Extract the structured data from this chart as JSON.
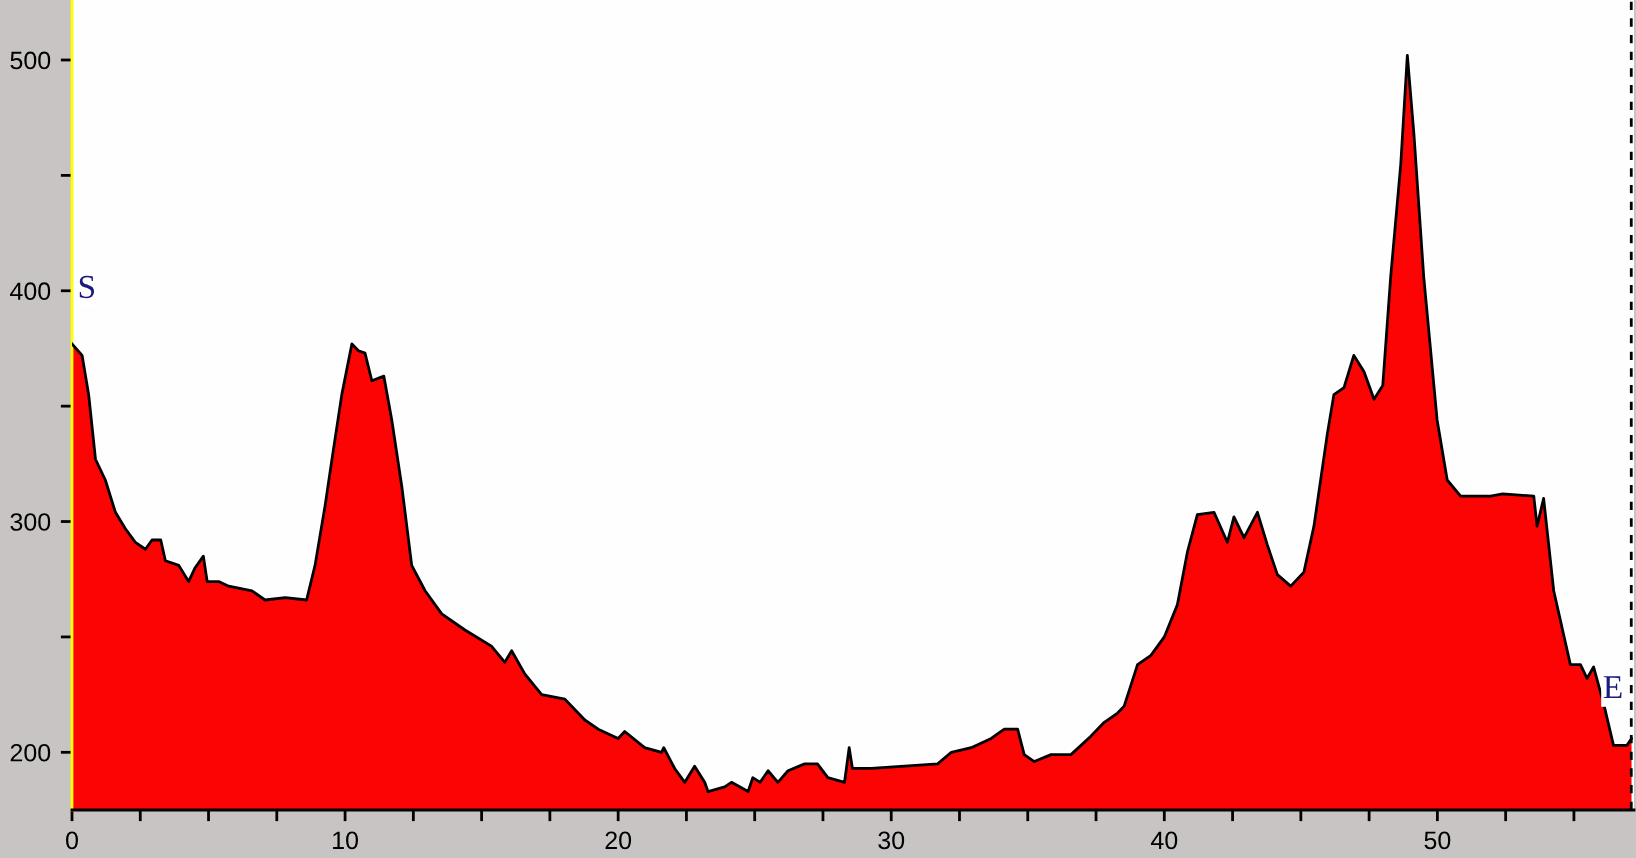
{
  "chart_data": {
    "type": "area",
    "x": [
      0,
      0.37,
      0.61,
      0.86,
      1.22,
      1.59,
      1.95,
      2.32,
      2.69,
      2.93,
      3.25,
      3.42,
      3.91,
      4.27,
      4.51,
      4.81,
      4.95,
      5.37,
      5.74,
      6.59,
      7.07,
      7.81,
      8.59,
      8.9,
      9.27,
      9.52,
      9.88,
      10.25,
      10.49,
      10.73,
      10.98,
      11.42,
      11.71,
      12.08,
      12.44,
      12.93,
      13.54,
      14.39,
      15.36,
      15.85,
      16.1,
      16.58,
      17.2,
      18.05,
      18.78,
      19.27,
      20.0,
      20.24,
      20.97,
      21.59,
      21.67,
      22.07,
      22.44,
      22.8,
      23.17,
      23.29,
      23.9,
      24.15,
      24.76,
      24.93,
      25.2,
      25.49,
      25.85,
      26.22,
      26.83,
      27.3,
      27.68,
      28.29,
      28.46,
      28.58,
      29.27,
      30.49,
      31.7,
      32.2,
      32.93,
      33.66,
      34.14,
      34.63,
      34.87,
      35.24,
      35.85,
      36.58,
      37.31,
      37.8,
      38.29,
      38.53,
      39.02,
      39.51,
      40.0,
      40.48,
      40.85,
      41.21,
      41.82,
      42.31,
      42.55,
      42.92,
      43.41,
      43.77,
      44.14,
      44.63,
      45.11,
      45.48,
      45.97,
      46.21,
      46.58,
      46.94,
      47.31,
      47.68,
      48.0,
      48.29,
      48.66,
      48.9,
      49.14,
      49.5,
      49.99,
      50.36,
      50.85,
      51.95,
      52.39,
      53.53,
      53.65,
      53.89,
      54.26,
      54.87,
      55.24,
      55.48,
      55.72,
      56.09,
      56.45,
      56.94,
      57.11
    ],
    "series": [
      {
        "color": "#fc0404",
        "values": [
          377,
          372,
          355,
          327,
          318,
          304,
          297,
          291,
          288,
          292,
          292,
          283,
          281,
          274,
          280,
          285,
          274,
          274,
          272,
          270,
          266,
          267,
          266,
          281,
          307,
          327,
          355,
          377,
          374,
          373,
          361,
          363,
          344,
          315,
          281,
          270,
          260,
          253,
          246,
          239,
          244,
          234,
          225,
          223,
          214,
          210,
          206,
          209,
          202,
          200,
          202,
          193,
          187,
          194,
          187,
          183,
          185,
          187,
          183,
          189,
          187,
          192,
          187,
          192,
          195,
          195,
          189,
          187,
          202,
          193,
          193,
          194,
          195,
          200,
          202,
          206,
          210,
          210,
          199,
          196,
          199,
          199,
          207,
          213,
          217,
          220,
          238,
          242,
          250,
          264,
          287,
          303,
          304,
          291,
          302,
          293,
          304,
          290,
          277,
          272,
          278,
          298,
          338,
          355,
          358,
          372,
          365,
          353,
          359,
          406,
          455,
          502,
          468,
          406,
          344,
          318,
          311,
          311,
          312,
          311,
          298,
          310,
          270,
          238,
          238,
          232,
          237,
          221,
          203,
          203,
          206
        ]
      }
    ],
    "xlim": [
      0,
      57.2
    ],
    "ylim": [
      175,
      526
    ],
    "xticks": [
      0,
      {
        "value": 2.5,
        "label": null
      },
      {
        "value": 5,
        "label": null
      },
      {
        "value": 7.5,
        "label": null
      },
      10,
      {
        "value": 12.5,
        "label": null
      },
      {
        "value": 15,
        "label": null
      },
      {
        "value": 17.5,
        "label": null
      },
      20,
      {
        "value": 22.5,
        "label": null
      },
      {
        "value": 25,
        "label": null
      },
      {
        "value": 27.5,
        "label": null
      },
      30,
      {
        "value": 32.5,
        "label": null
      },
      {
        "value": 35,
        "label": null
      },
      {
        "value": 37.5,
        "label": null
      },
      40,
      {
        "value": 42.5,
        "label": null
      },
      {
        "value": 45,
        "label": null
      },
      {
        "value": 47.5,
        "label": null
      },
      50,
      {
        "value": 52.5,
        "label": null
      },
      {
        "value": 55,
        "label": null
      }
    ],
    "yticks": [
      200,
      {
        "value": 250,
        "label": null
      },
      300,
      {
        "value": 350,
        "label": null
      },
      400,
      {
        "value": 450,
        "label": null
      },
      500
    ],
    "annotations": [
      "S",
      "E"
    ],
    "ref_lines": [
      {
        "axis": "x",
        "value": 57.1,
        "color": "#000000",
        "line_style": "dashed"
      }
    ],
    "grid": false,
    "legend": false
  }
}
